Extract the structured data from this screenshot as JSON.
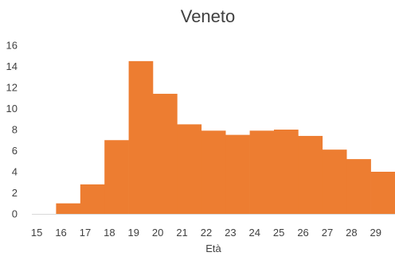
{
  "chart_data": {
    "type": "bar",
    "title": "Veneto",
    "xlabel": "Età",
    "ylabel": "",
    "categories": [
      "15",
      "16",
      "17",
      "18",
      "19",
      "20",
      "21",
      "22",
      "23",
      "24",
      "25",
      "26",
      "27",
      "28",
      "29"
    ],
    "values": [
      0,
      1.0,
      2.8,
      7.0,
      14.5,
      11.4,
      8.5,
      7.9,
      7.5,
      7.9,
      8.0,
      7.4,
      6.1,
      5.2,
      4.0
    ],
    "ylim": [
      0,
      16
    ],
    "yticks": [
      "0",
      "2",
      "4",
      "6",
      "8",
      "10",
      "12",
      "14",
      "16"
    ],
    "bar_color": "#ED7D31",
    "grid": false,
    "legend": "none"
  }
}
